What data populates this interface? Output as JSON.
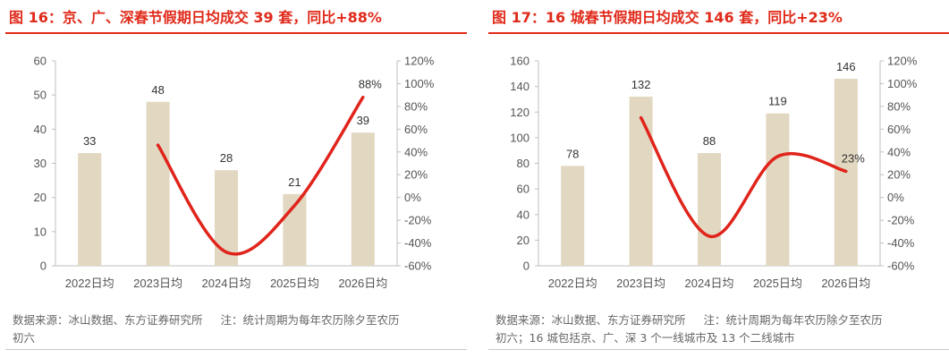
{
  "panels": [
    {
      "title": "图 16：京、广、深春节假期日均成交 39 套，同比+88%",
      "source": "数据来源：冰山数据、东方证券研究所",
      "note_line1": "注：统计周期为每年农历除夕至农历",
      "note_line2": "初六",
      "chart_data": {
        "type": "bar+line",
        "categories": [
          "2022日均",
          "2023日均",
          "2024日均",
          "2025日均",
          "2026日均"
        ],
        "bar_values": [
          33,
          48,
          28,
          21,
          39
        ],
        "bar_labels": [
          "33",
          "48",
          "28",
          "21",
          "39"
        ],
        "line_values": [
          null,
          46,
          -48,
          -7,
          88
        ],
        "line_labels": [
          null,
          null,
          null,
          null,
          "88%"
        ],
        "left_axis": {
          "min": 0,
          "max": 60,
          "ticks": [
            "0",
            "10",
            "20",
            "30",
            "40",
            "50",
            "60"
          ]
        },
        "right_axis": {
          "min": -60,
          "max": 120,
          "ticks": [
            "-60%",
            "-40%",
            "-20%",
            "0%",
            "20%",
            "40%",
            "60%",
            "80%",
            "100%",
            "120%"
          ]
        },
        "bar_color": "#e2d7c0",
        "line_color": "#e0241b"
      }
    },
    {
      "title": "图 17：16 城春节假期日均成交 146 套，同比+23%",
      "source": "数据来源：冰山数据、东方证券研究所",
      "note_line1": "注：统计周期为每年农历除夕至农历",
      "note_line2": "初六；16 城包括京、广、深 3 个一线城市及 13 个二线城市",
      "chart_data": {
        "type": "bar+line",
        "categories": [
          "2022日均",
          "2023日均",
          "2024日均",
          "2025日均",
          "2026日均"
        ],
        "bar_values": [
          78,
          132,
          88,
          119,
          146
        ],
        "bar_labels": [
          "78",
          "132",
          "88",
          "119",
          "146"
        ],
        "line_values": [
          null,
          70,
          -34,
          36,
          23
        ],
        "line_labels": [
          null,
          null,
          null,
          null,
          "23%"
        ],
        "left_axis": {
          "min": 0,
          "max": 160,
          "ticks": [
            "0",
            "20",
            "40",
            "60",
            "80",
            "100",
            "120",
            "140",
            "160"
          ]
        },
        "right_axis": {
          "min": -60,
          "max": 120,
          "ticks": [
            "-60%",
            "-40%",
            "-20%",
            "0%",
            "20%",
            "40%",
            "60%",
            "80%",
            "100%",
            "120%"
          ]
        },
        "bar_color": "#e2d7c0",
        "line_color": "#e0241b"
      }
    }
  ]
}
